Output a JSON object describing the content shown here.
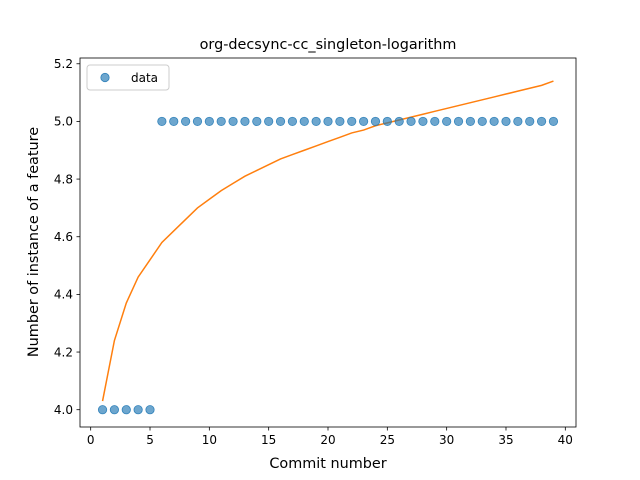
{
  "chart_data": {
    "type": "scatter",
    "title": "org-decsync-cc_singleton-logarithm",
    "xlabel": "Commit number",
    "ylabel": "Number of instance of a feature",
    "xlim": [
      -0.9,
      40.9
    ],
    "ylim": [
      3.94,
      5.22
    ],
    "xticks": [
      0,
      5,
      10,
      15,
      20,
      25,
      30,
      35,
      40
    ],
    "xtick_labels": [
      "0",
      "5",
      "10",
      "15",
      "20",
      "25",
      "30",
      "35",
      "40"
    ],
    "yticks": [
      4.0,
      4.2,
      4.4,
      4.6,
      4.8,
      5.0,
      5.2
    ],
    "ytick_labels": [
      "4.0",
      "4.2",
      "4.4",
      "4.6",
      "4.8",
      "5.0",
      "5.2"
    ],
    "legend": {
      "location": "upper-left",
      "entries": [
        "data"
      ]
    },
    "grid": false,
    "series": [
      {
        "name": "data",
        "kind": "scatter",
        "color": "#1f77b4",
        "x": [
          1,
          2,
          3,
          4,
          5,
          6,
          7,
          8,
          9,
          10,
          11,
          12,
          13,
          14,
          15,
          16,
          17,
          18,
          19,
          20,
          21,
          22,
          23,
          24,
          25,
          26,
          27,
          28,
          29,
          30,
          31,
          32,
          33,
          34,
          35,
          36,
          37,
          38,
          39
        ],
        "y": [
          4,
          4,
          4,
          4,
          4,
          5,
          5,
          5,
          5,
          5,
          5,
          5,
          5,
          5,
          5,
          5,
          5,
          5,
          5,
          5,
          5,
          5,
          5,
          5,
          5,
          5,
          5,
          5,
          5,
          5,
          5,
          5,
          5,
          5,
          5,
          5,
          5,
          5,
          5
        ]
      },
      {
        "kind": "line",
        "color": "#ff7f0e",
        "x": [
          1,
          2,
          3,
          4,
          5,
          6,
          7,
          8,
          9,
          10,
          11,
          12,
          13,
          14,
          15,
          16,
          17,
          18,
          19,
          20,
          21,
          22,
          23,
          24,
          25,
          26,
          27,
          28,
          29,
          30,
          31,
          32,
          33,
          34,
          35,
          36,
          37,
          38,
          39
        ],
        "y": [
          4.03,
          4.24,
          4.37,
          4.46,
          4.52,
          4.58,
          4.62,
          4.66,
          4.7,
          4.73,
          4.76,
          4.785,
          4.81,
          4.83,
          4.85,
          4.87,
          4.885,
          4.9,
          4.915,
          4.93,
          4.945,
          4.96,
          4.97,
          4.985,
          4.995,
          5.005,
          5.015,
          5.025,
          5.035,
          5.045,
          5.055,
          5.065,
          5.075,
          5.085,
          5.095,
          5.105,
          5.115,
          5.125,
          5.14
        ]
      }
    ]
  }
}
